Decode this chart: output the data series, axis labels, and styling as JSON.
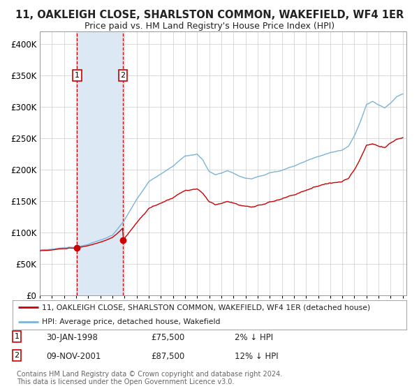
{
  "title": "11, OAKLEIGH CLOSE, SHARLSTON COMMON, WAKEFIELD, WF4 1ER",
  "subtitle": "Price paid vs. HM Land Registry's House Price Index (HPI)",
  "legend_line1": "11, OAKLEIGH CLOSE, SHARLSTON COMMON, WAKEFIELD, WF4 1ER (detached house)",
  "legend_line2": "HPI: Average price, detached house, Wakefield",
  "transaction1_date": "30-JAN-1998",
  "transaction1_price": "£75,500",
  "transaction1_hpi": "2% ↓ HPI",
  "transaction2_date": "09-NOV-2001",
  "transaction2_price": "£87,500",
  "transaction2_hpi": "12% ↓ HPI",
  "footer": "Contains HM Land Registry data © Crown copyright and database right 2024.\nThis data is licensed under the Open Government Licence v3.0.",
  "hpi_color": "#7ab4d8",
  "price_color": "#cc0000",
  "marker_color": "#cc0000",
  "vline_color": "#cc0000",
  "shade_color": "#dce9f5",
  "background_color": "#ffffff",
  "grid_color": "#cccccc",
  "ylim": [
    0,
    420000
  ],
  "x_start_year": 1995,
  "x_end_year": 2025,
  "transaction1_year": 1998.08,
  "transaction2_year": 2001.86,
  "transaction1_price_val": 75500,
  "transaction2_price_val": 87500
}
